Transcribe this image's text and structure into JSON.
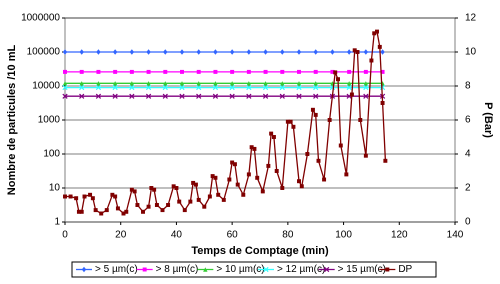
{
  "chart_data": {
    "type": "line",
    "y_label": "Nombre de particules /10 mL",
    "y2_label": "P (Bar)",
    "x_label": "Temps de Comptage (min)",
    "xlim": [
      0,
      140
    ],
    "xticks": [
      0,
      20,
      40,
      60,
      80,
      100,
      120,
      140
    ],
    "ylim": [
      1,
      1000000
    ],
    "yticks": [
      1,
      10,
      100,
      1000,
      10000,
      100000,
      1000000
    ],
    "log_y": true,
    "y2lim": [
      0,
      12
    ],
    "y2ticks": [
      0,
      2,
      4,
      6,
      8,
      10,
      12
    ],
    "grid": true,
    "legend": "bottom",
    "series": [
      {
        "name": "> 5 µm(c)",
        "color": "#3366ff",
        "x": [
          0,
          6,
          12,
          18,
          24,
          30,
          36,
          42,
          48,
          54,
          60,
          66,
          72,
          78,
          84,
          90,
          96,
          102,
          108,
          114
        ],
        "values": [
          100000,
          100000,
          100000,
          100000,
          100000,
          100000,
          100000,
          100000,
          100000,
          100000,
          100000,
          100000,
          100000,
          100000,
          100000,
          100000,
          100000,
          100000,
          100000,
          100000
        ]
      },
      {
        "name": "> 8 µm(c)",
        "color": "#ff00ff",
        "x": [
          0,
          6,
          12,
          18,
          24,
          30,
          36,
          42,
          48,
          54,
          60,
          66,
          72,
          78,
          84,
          90,
          96,
          102,
          108,
          114
        ],
        "values": [
          26000,
          26000,
          26000,
          26000,
          26000,
          26000,
          26000,
          26000,
          26000,
          26000,
          26000,
          26000,
          26000,
          26000,
          26000,
          26000,
          26000,
          26000,
          26000,
          26000
        ]
      },
      {
        "name": "> 10 µm(c)",
        "color": "#33cc33",
        "x": [
          0,
          6,
          12,
          18,
          24,
          30,
          36,
          42,
          48,
          54,
          60,
          66,
          72,
          78,
          84,
          90,
          96,
          102,
          108,
          114
        ],
        "values": [
          12000,
          12000,
          12000,
          12000,
          12000,
          12000,
          12000,
          12000,
          12000,
          12000,
          12000,
          12000,
          12000,
          12000,
          12000,
          12000,
          12000,
          12000,
          12000,
          12000
        ]
      },
      {
        "name": "> 12 µm(c)",
        "color": "#33ffff",
        "x": [
          0,
          6,
          12,
          18,
          24,
          30,
          36,
          42,
          48,
          54,
          60,
          66,
          72,
          78,
          84,
          90,
          96,
          102,
          108,
          114
        ],
        "values": [
          9000,
          9000,
          9000,
          9000,
          9000,
          9000,
          9000,
          9000,
          9000,
          9000,
          9000,
          9000,
          9000,
          9000,
          9000,
          9000,
          9000,
          9000,
          9000,
          9000
        ]
      },
      {
        "name": "> 15 µm(c)",
        "color": "#800080",
        "x": [
          0,
          6,
          12,
          18,
          24,
          30,
          36,
          42,
          48,
          54,
          60,
          66,
          72,
          78,
          84,
          90,
          96,
          102,
          108,
          114
        ],
        "values": [
          5000,
          5000,
          5000,
          5000,
          5000,
          5000,
          5000,
          5000,
          5000,
          5000,
          5000,
          5000,
          5000,
          5000,
          5000,
          5000,
          5000,
          5000,
          5000,
          5000
        ]
      },
      {
        "name": "DP",
        "color": "#800000",
        "axis": "y2",
        "x": [
          0,
          2,
          4,
          5,
          6,
          7,
          9,
          10,
          11,
          13,
          15,
          17,
          18,
          19,
          21,
          22,
          24,
          25,
          26,
          28,
          30,
          31,
          32,
          33,
          35,
          37,
          39,
          40,
          41,
          43,
          45,
          46,
          47,
          48,
          50,
          52,
          53,
          54,
          55,
          57,
          59,
          60,
          61,
          62,
          64,
          66,
          67,
          68,
          69,
          71,
          73,
          74,
          75,
          76,
          78,
          80,
          81,
          82,
          84,
          85,
          87,
          89,
          90,
          91,
          93,
          95,
          97,
          98,
          99,
          101,
          103,
          104,
          105,
          106,
          108,
          110,
          111,
          112,
          113,
          114,
          115
        ],
        "values": [
          1.5,
          1.5,
          1.4,
          0.6,
          0.6,
          1.5,
          1.6,
          1.4,
          0.7,
          0.5,
          0.7,
          1.6,
          1.5,
          0.8,
          0.5,
          0.6,
          1.9,
          1.8,
          1.0,
          0.6,
          0.9,
          2.0,
          1.9,
          1.0,
          0.7,
          1.0,
          2.1,
          2.0,
          1.2,
          0.7,
          1.2,
          2.3,
          2.2,
          1.3,
          0.9,
          1.5,
          2.7,
          2.6,
          1.6,
          1.3,
          2.5,
          3.5,
          3.4,
          2.2,
          1.6,
          2.8,
          4.4,
          4.3,
          2.6,
          1.8,
          3.3,
          5.2,
          5.0,
          3.0,
          2.0,
          5.9,
          5.9,
          5.6,
          2.4,
          2.1,
          4.0,
          6.6,
          6.3,
          3.6,
          2.5,
          6.0,
          8.8,
          8.4,
          4.5,
          2.8,
          7.5,
          10.1,
          10.0,
          6.0,
          3.9,
          9.5,
          11.1,
          11.2,
          10.3,
          7.0,
          3.6
        ]
      }
    ]
  }
}
